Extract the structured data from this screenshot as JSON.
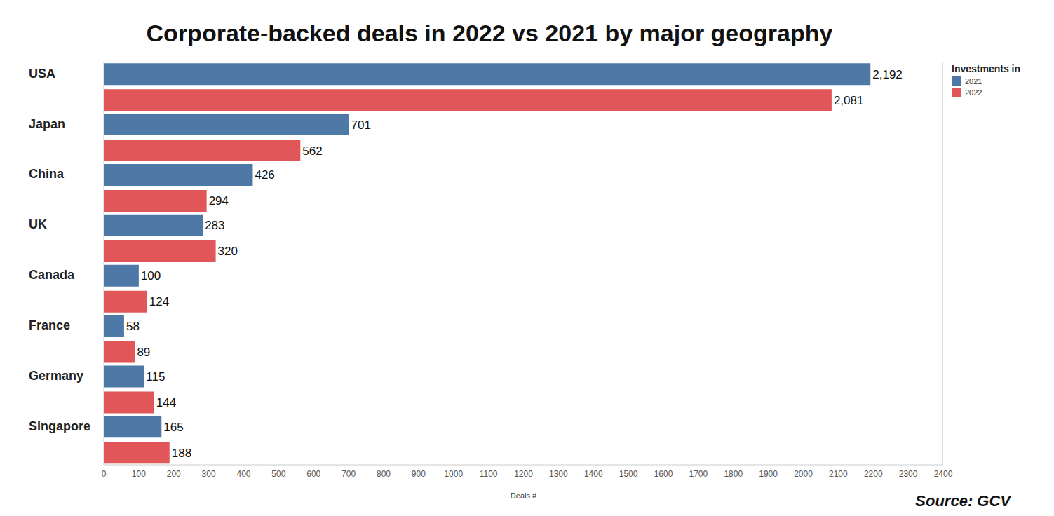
{
  "chart_data": {
    "type": "bar",
    "title": "Corporate-backed deals in 2022 vs 2021 by major geography",
    "orientation": "horizontal",
    "categories": [
      "USA",
      "Japan",
      "China",
      "UK",
      "Canada",
      "France",
      "Germany",
      "Singapore"
    ],
    "series": [
      {
        "name": "2021",
        "color": "#4e79a7",
        "values": [
          2192,
          701,
          426,
          283,
          100,
          58,
          115,
          165
        ],
        "value_labels": [
          "2,192",
          "701",
          "426",
          "283",
          "100",
          "58",
          "115",
          "165"
        ]
      },
      {
        "name": "2022",
        "color": "#e15759",
        "values": [
          2081,
          562,
          294,
          320,
          124,
          89,
          144,
          188
        ],
        "value_labels": [
          "2,081",
          "562",
          "294",
          "320",
          "124",
          "89",
          "144",
          "188"
        ]
      }
    ],
    "x_label": "Deals #",
    "xlim": [
      0,
      2400
    ],
    "xticks": [
      0,
      100,
      200,
      300,
      400,
      500,
      600,
      700,
      800,
      900,
      1000,
      1100,
      1200,
      1300,
      1400,
      1500,
      1600,
      1700,
      1800,
      1900,
      2000,
      2100,
      2200,
      2300,
      2400
    ],
    "legend": "right",
    "legend_title": "Investments in",
    "data_labels": true,
    "grid": false,
    "source": "Source: GCV"
  }
}
